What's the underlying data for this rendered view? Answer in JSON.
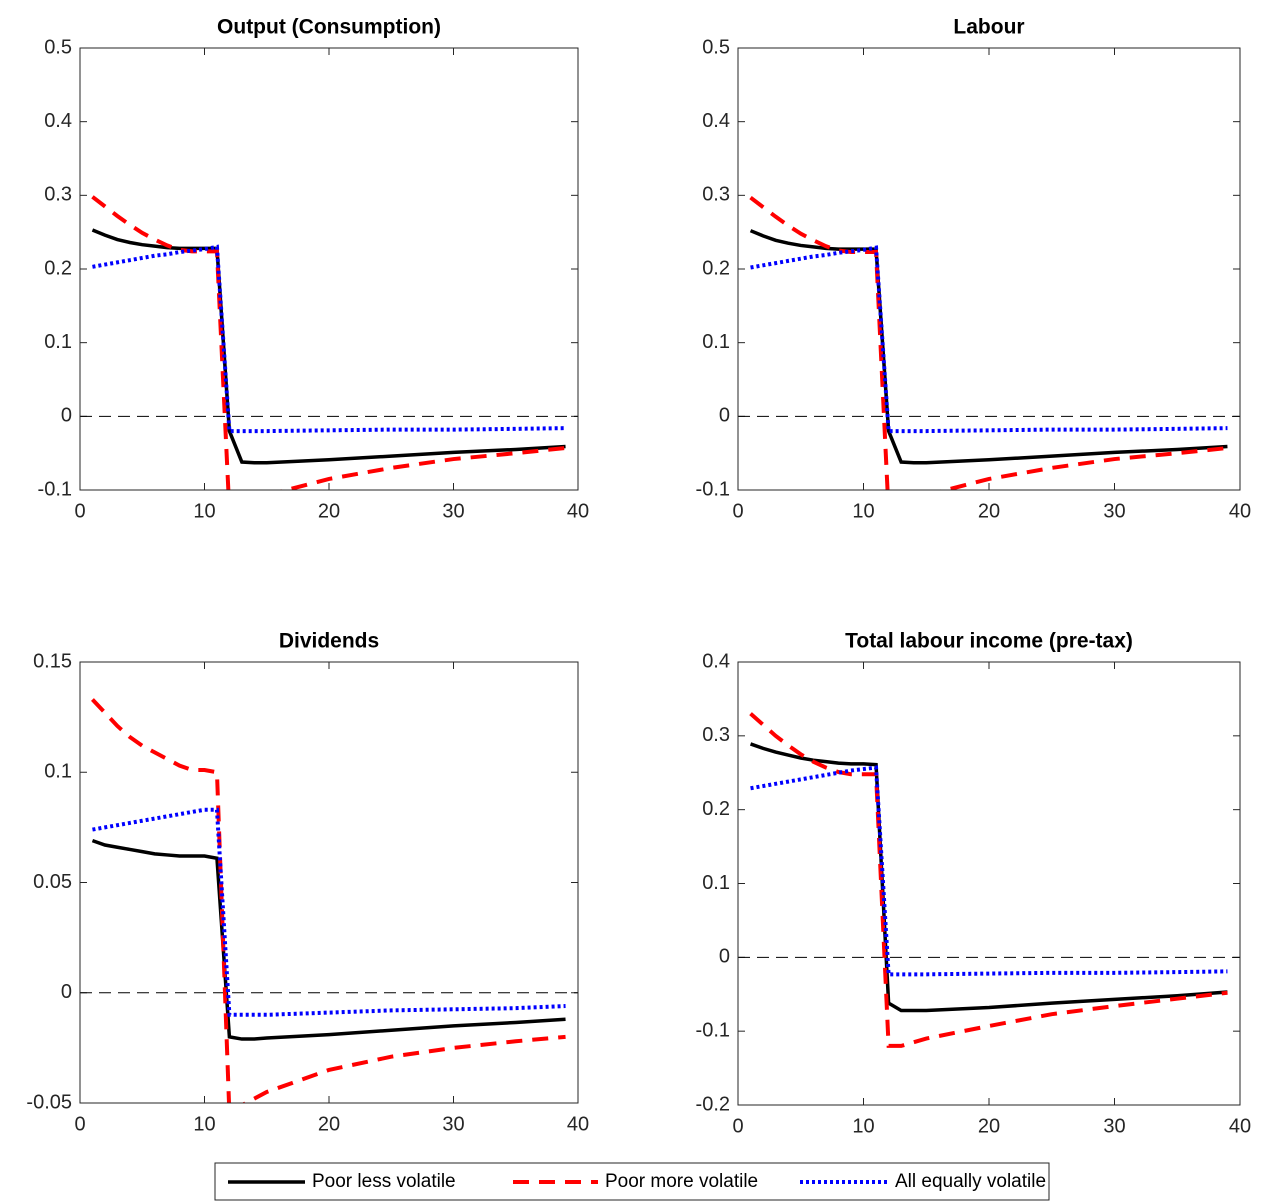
{
  "chart_data": [
    {
      "type": "line",
      "title": "Output (Consumption)",
      "x": [
        1,
        2,
        3,
        4,
        5,
        6,
        7,
        8,
        9,
        10,
        11,
        12,
        13,
        14,
        15,
        20,
        25,
        30,
        35,
        39
      ],
      "xlim": [
        0,
        40
      ],
      "xticks": [
        0,
        10,
        20,
        30,
        40
      ],
      "ylim": [
        -0.1,
        0.5
      ],
      "yticks": [
        -0.1,
        0,
        0.1,
        0.2,
        0.3,
        0.4,
        0.5
      ],
      "hline": 0,
      "series": [
        {
          "name": "Poor less volatile",
          "color": "#000000",
          "values": [
            0.253,
            0.246,
            0.24,
            0.236,
            0.233,
            0.231,
            0.229,
            0.228,
            0.228,
            0.228,
            0.228,
            -0.02,
            -0.062,
            -0.063,
            -0.063,
            -0.059,
            -0.054,
            -0.049,
            -0.045,
            -0.041
          ]
        },
        {
          "name": "Poor more volatile",
          "color": "#ff0000",
          "values": [
            0.298,
            0.285,
            0.272,
            0.26,
            0.249,
            0.24,
            0.232,
            0.226,
            0.224,
            0.224,
            0.224,
            -0.13,
            -0.125,
            -0.115,
            -0.107,
            -0.085,
            -0.07,
            -0.058,
            -0.05,
            -0.043
          ]
        },
        {
          "name": "All equally volatile",
          "color": "#0000ff",
          "values": [
            0.203,
            0.206,
            0.209,
            0.212,
            0.215,
            0.218,
            0.22,
            0.223,
            0.225,
            0.227,
            0.23,
            -0.02,
            -0.02,
            -0.02,
            -0.02,
            -0.019,
            -0.018,
            -0.018,
            -0.017,
            -0.016
          ]
        }
      ]
    },
    {
      "type": "line",
      "title": "Labour",
      "x": [
        1,
        2,
        3,
        4,
        5,
        6,
        7,
        8,
        9,
        10,
        11,
        12,
        13,
        14,
        15,
        20,
        25,
        30,
        35,
        39
      ],
      "xlim": [
        0,
        40
      ],
      "xticks": [
        0,
        10,
        20,
        30,
        40
      ],
      "ylim": [
        -0.1,
        0.5
      ],
      "yticks": [
        -0.1,
        0,
        0.1,
        0.2,
        0.3,
        0.4,
        0.5
      ],
      "hline": 0,
      "series": [
        {
          "name": "Poor less volatile",
          "color": "#000000",
          "values": [
            0.252,
            0.245,
            0.239,
            0.235,
            0.232,
            0.23,
            0.228,
            0.227,
            0.227,
            0.227,
            0.227,
            -0.02,
            -0.062,
            -0.063,
            -0.063,
            -0.059,
            -0.054,
            -0.049,
            -0.045,
            -0.041
          ]
        },
        {
          "name": "Poor more volatile",
          "color": "#ff0000",
          "values": [
            0.297,
            0.284,
            0.271,
            0.259,
            0.248,
            0.239,
            0.231,
            0.225,
            0.223,
            0.223,
            0.223,
            -0.13,
            -0.125,
            -0.115,
            -0.107,
            -0.085,
            -0.07,
            -0.058,
            -0.05,
            -0.043
          ]
        },
        {
          "name": "All equally volatile",
          "color": "#0000ff",
          "values": [
            0.202,
            0.205,
            0.208,
            0.211,
            0.214,
            0.217,
            0.219,
            0.222,
            0.224,
            0.226,
            0.229,
            -0.02,
            -0.02,
            -0.02,
            -0.02,
            -0.019,
            -0.018,
            -0.018,
            -0.017,
            -0.016
          ]
        }
      ]
    },
    {
      "type": "line",
      "title": "Dividends",
      "x": [
        1,
        2,
        3,
        4,
        5,
        6,
        7,
        8,
        9,
        10,
        11,
        12,
        13,
        14,
        15,
        20,
        25,
        30,
        35,
        39
      ],
      "xlim": [
        0,
        40
      ],
      "xticks": [
        0,
        10,
        20,
        30,
        40
      ],
      "ylim": [
        -0.05,
        0.15
      ],
      "yticks": [
        -0.05,
        0,
        0.05,
        0.1,
        0.15
      ],
      "hline": 0,
      "series": [
        {
          "name": "Poor less volatile",
          "color": "#000000",
          "values": [
            0.069,
            0.067,
            0.066,
            0.065,
            0.064,
            0.063,
            0.0625,
            0.062,
            0.062,
            0.062,
            0.061,
            -0.02,
            -0.021,
            -0.021,
            -0.0205,
            -0.019,
            -0.017,
            -0.015,
            -0.0135,
            -0.012
          ]
        },
        {
          "name": "Poor more volatile",
          "color": "#ff0000",
          "values": [
            0.133,
            0.127,
            0.121,
            0.116,
            0.112,
            0.109,
            0.106,
            0.103,
            0.101,
            0.101,
            0.1,
            -0.055,
            -0.051,
            -0.048,
            -0.045,
            -0.035,
            -0.029,
            -0.025,
            -0.022,
            -0.02
          ]
        },
        {
          "name": "All equally volatile",
          "color": "#0000ff",
          "values": [
            0.074,
            0.075,
            0.076,
            0.077,
            0.078,
            0.079,
            0.08,
            0.081,
            0.082,
            0.083,
            0.083,
            -0.01,
            -0.01,
            -0.01,
            -0.01,
            -0.009,
            -0.008,
            -0.0075,
            -0.007,
            -0.006
          ]
        }
      ]
    },
    {
      "type": "line",
      "title": "Total labour income (pre-tax)",
      "x": [
        1,
        2,
        3,
        4,
        5,
        6,
        7,
        8,
        9,
        10,
        11,
        12,
        13,
        14,
        15,
        20,
        25,
        30,
        35,
        39
      ],
      "xlim": [
        0,
        40
      ],
      "xticks": [
        0,
        10,
        20,
        30,
        40
      ],
      "ylim": [
        -0.2,
        0.4
      ],
      "yticks": [
        -0.2,
        -0.1,
        0,
        0.1,
        0.2,
        0.3,
        0.4
      ],
      "hline": 0,
      "series": [
        {
          "name": "Poor less volatile",
          "color": "#000000",
          "values": [
            0.289,
            0.283,
            0.278,
            0.274,
            0.27,
            0.267,
            0.265,
            0.263,
            0.262,
            0.262,
            0.261,
            -0.062,
            -0.072,
            -0.072,
            -0.072,
            -0.068,
            -0.062,
            -0.057,
            -0.052,
            -0.047
          ]
        },
        {
          "name": "Poor more volatile",
          "color": "#ff0000",
          "values": [
            0.33,
            0.315,
            0.3,
            0.287,
            0.275,
            0.265,
            0.257,
            0.251,
            0.248,
            0.248,
            0.248,
            -0.12,
            -0.12,
            -0.115,
            -0.11,
            -0.093,
            -0.077,
            -0.066,
            -0.056,
            -0.048
          ]
        },
        {
          "name": "All equally volatile",
          "color": "#0000ff",
          "values": [
            0.229,
            0.232,
            0.235,
            0.238,
            0.241,
            0.244,
            0.247,
            0.25,
            0.253,
            0.255,
            0.257,
            -0.023,
            -0.023,
            -0.023,
            -0.023,
            -0.022,
            -0.021,
            -0.021,
            -0.02,
            -0.019
          ]
        }
      ]
    }
  ]
}
